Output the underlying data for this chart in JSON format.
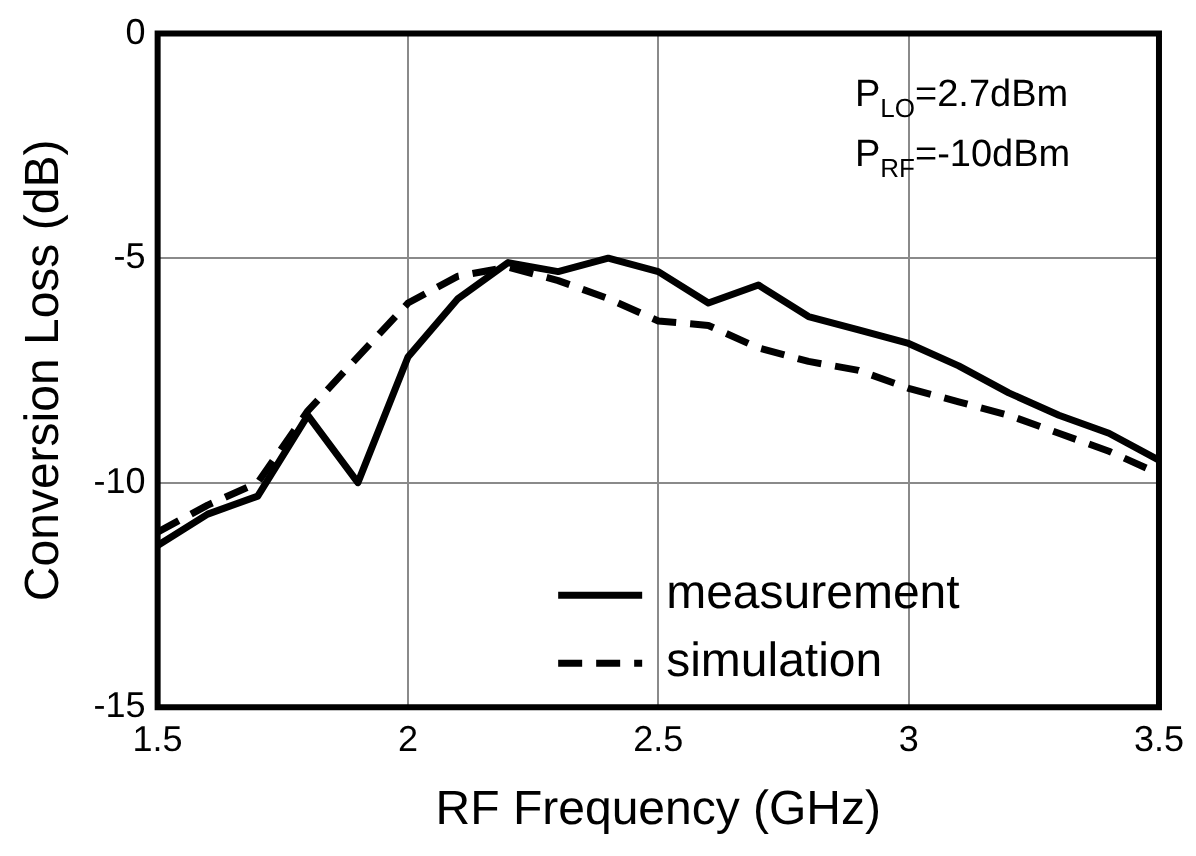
{
  "chart_data": {
    "type": "line",
    "xlabel": "RF Frequency (GHz)",
    "ylabel": "Conversion Loss (dB)",
    "x": [
      1.5,
      1.6,
      1.7,
      1.8,
      1.9,
      2.0,
      2.1,
      2.2,
      2.3,
      2.4,
      2.5,
      2.6,
      2.7,
      2.8,
      2.9,
      3.0,
      3.1,
      3.2,
      3.3,
      3.4,
      3.5
    ],
    "series": [
      {
        "name": "measurement",
        "color": "#000000",
        "line_style": "solid",
        "values": [
          -11.4,
          -10.7,
          -10.3,
          -8.5,
          -10.0,
          -7.2,
          -5.9,
          -5.1,
          -5.3,
          -5.0,
          -5.3,
          -6.0,
          -5.6,
          -6.3,
          -6.6,
          -6.9,
          -7.4,
          -8.0,
          -8.5,
          -8.9,
          -9.5
        ]
      },
      {
        "name": "simulation",
        "color": "#000000",
        "line_style": "dashed",
        "values": [
          -11.1,
          -10.5,
          -10.0,
          -8.4,
          -7.2,
          -6.0,
          -5.4,
          -5.2,
          -5.5,
          -5.9,
          -6.4,
          -6.5,
          -7.0,
          -7.3,
          -7.5,
          -7.9,
          -8.2,
          -8.5,
          -8.9,
          -9.3,
          -9.8
        ]
      }
    ],
    "xlim": [
      1.5,
      3.5
    ],
    "xticks": [
      1.5,
      2,
      2.5,
      3,
      3.5
    ],
    "ylim": [
      -15,
      0
    ],
    "yticks": [
      -15,
      -10,
      -5,
      0
    ],
    "grid": true,
    "legend": "bottom right",
    "marker": "none",
    "annotations": [
      "P$_{LO}$=2.7dBm",
      "P$_{RF}$=-10dBm"
    ]
  }
}
